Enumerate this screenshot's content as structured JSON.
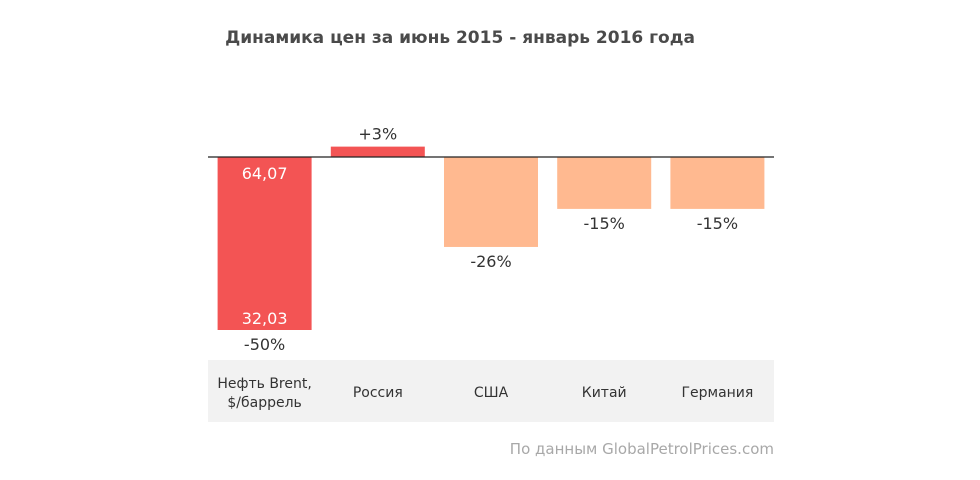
{
  "chart_data": {
    "type": "bar",
    "title": "Динамика цен за июнь 2015 - январь 2016 года",
    "categories": [
      [
        "Нефть Brent,",
        "$/баррель"
      ],
      [
        "Россия"
      ],
      [
        "США"
      ],
      [
        "Китай"
      ],
      [
        "Германия"
      ]
    ],
    "values": [
      -50,
      3,
      -26,
      -15,
      -15
    ],
    "value_labels": [
      "-50%",
      "+3%",
      "-26%",
      "-15%",
      "-15%"
    ],
    "brent_start_price": "64,07",
    "brent_end_price": "32,03",
    "colors": [
      "#f35454",
      "#f35454",
      "#ffb990",
      "#ffb990",
      "#ffb990"
    ],
    "baseline_color": "#222222",
    "category_band_color": "#f2f2f2"
  },
  "source_note": "По данным GlobalPetrolPrices.com"
}
